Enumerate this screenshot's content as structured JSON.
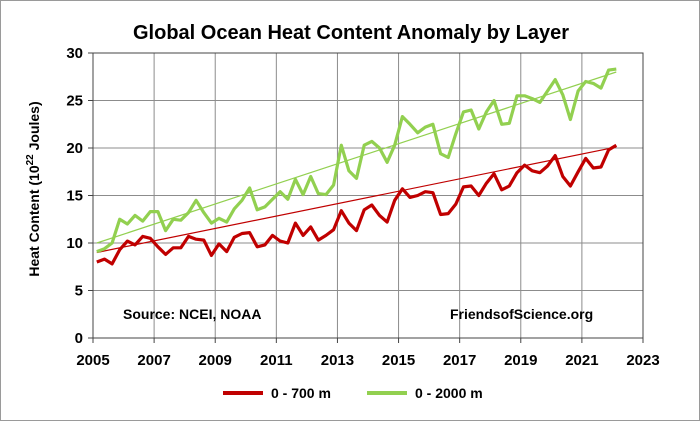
{
  "chart_data": {
    "type": "line",
    "title": "Global Ocean Heat Content Anomaly by Layer",
    "xlabel": "",
    "ylabel": "Heat Content (10",
    "ylabel_sup": "22",
    "ylabel_suffix": " Joules)",
    "xlim": [
      2005,
      2023
    ],
    "ylim": [
      0,
      30
    ],
    "x_ticks": [
      2005,
      2007,
      2009,
      2011,
      2013,
      2015,
      2017,
      2019,
      2021,
      2023
    ],
    "y_ticks": [
      0,
      5,
      10,
      15,
      20,
      25,
      30
    ],
    "grid": true,
    "legend_position": "bottom",
    "annotations": [
      {
        "text": "Source: NCEI, NOAA",
        "position": "lower-left"
      },
      {
        "text": "FriendsofScience.org",
        "position": "lower-right"
      }
    ],
    "series": [
      {
        "name": "0 - 700 m",
        "color": "#c00000",
        "trend_color": "#c00000",
        "trend": [
          [
            2005.125,
            9.0
          ],
          [
            2022.125,
            20.1
          ]
        ],
        "x": [
          2005.125,
          2005.375,
          2005.625,
          2005.875,
          2006.125,
          2006.375,
          2006.625,
          2006.875,
          2007.125,
          2007.375,
          2007.625,
          2007.875,
          2008.125,
          2008.375,
          2008.625,
          2008.875,
          2009.125,
          2009.375,
          2009.625,
          2009.875,
          2010.125,
          2010.375,
          2010.625,
          2010.875,
          2011.125,
          2011.375,
          2011.625,
          2011.875,
          2012.125,
          2012.375,
          2012.625,
          2012.875,
          2013.125,
          2013.375,
          2013.625,
          2013.875,
          2014.125,
          2014.375,
          2014.625,
          2014.875,
          2015.125,
          2015.375,
          2015.625,
          2015.875,
          2016.125,
          2016.375,
          2016.625,
          2016.875,
          2017.125,
          2017.375,
          2017.625,
          2017.875,
          2018.125,
          2018.375,
          2018.625,
          2018.875,
          2019.125,
          2019.375,
          2019.625,
          2019.875,
          2020.125,
          2020.375,
          2020.625,
          2020.875,
          2021.125,
          2021.375,
          2021.625,
          2021.875,
          2022.125
        ],
        "values": [
          8.0,
          8.3,
          7.8,
          9.3,
          10.2,
          9.8,
          10.7,
          10.5,
          9.6,
          8.8,
          9.5,
          9.5,
          10.7,
          10.4,
          10.3,
          8.7,
          9.9,
          9.1,
          10.6,
          11.0,
          11.1,
          9.6,
          9.8,
          10.8,
          10.2,
          10.0,
          12.1,
          10.8,
          11.7,
          10.3,
          10.8,
          11.4,
          13.4,
          12.1,
          11.3,
          13.5,
          14.0,
          12.9,
          12.2,
          14.5,
          15.7,
          14.8,
          15.0,
          15.4,
          15.3,
          13.0,
          13.1,
          14.1,
          15.9,
          16.0,
          15.0,
          16.3,
          17.3,
          15.6,
          16.0,
          17.4,
          18.2,
          17.6,
          17.4,
          18.1,
          19.2,
          17.0,
          16.0,
          17.5,
          18.9,
          17.9,
          18.0,
          19.8,
          20.3
        ]
      },
      {
        "name": "0 - 2000 m",
        "color": "#92d050",
        "trend_color": "#92d050",
        "trend": [
          [
            2005.125,
            10.0
          ],
          [
            2022.125,
            28.0
          ]
        ],
        "x": [
          2005.125,
          2005.375,
          2005.625,
          2005.875,
          2006.125,
          2006.375,
          2006.625,
          2006.875,
          2007.125,
          2007.375,
          2007.625,
          2007.875,
          2008.125,
          2008.375,
          2008.625,
          2008.875,
          2009.125,
          2009.375,
          2009.625,
          2009.875,
          2010.125,
          2010.375,
          2010.625,
          2010.875,
          2011.125,
          2011.375,
          2011.625,
          2011.875,
          2012.125,
          2012.375,
          2012.625,
          2012.875,
          2013.125,
          2013.375,
          2013.625,
          2013.875,
          2014.125,
          2014.375,
          2014.625,
          2014.875,
          2015.125,
          2015.375,
          2015.625,
          2015.875,
          2016.125,
          2016.375,
          2016.625,
          2016.875,
          2017.125,
          2017.375,
          2017.625,
          2017.875,
          2018.125,
          2018.375,
          2018.625,
          2018.875,
          2019.125,
          2019.375,
          2019.625,
          2019.875,
          2020.125,
          2020.375,
          2020.625,
          2020.875,
          2021.125,
          2021.375,
          2021.625,
          2021.875,
          2022.125
        ],
        "values": [
          9.1,
          9.4,
          10.0,
          12.5,
          12.0,
          12.9,
          12.3,
          13.3,
          13.3,
          11.3,
          12.5,
          12.4,
          13.2,
          14.5,
          13.2,
          12.1,
          12.6,
          12.2,
          13.6,
          14.5,
          15.8,
          13.5,
          13.8,
          14.6,
          15.4,
          14.6,
          16.7,
          15.1,
          17.0,
          15.2,
          15.1,
          16.1,
          20.3,
          17.6,
          16.8,
          20.3,
          20.7,
          20.0,
          18.5,
          20.3,
          23.3,
          22.5,
          21.6,
          22.2,
          22.5,
          19.4,
          19.0,
          21.5,
          23.8,
          24.0,
          22.0,
          23.8,
          25.0,
          22.5,
          22.6,
          25.5,
          25.5,
          25.2,
          24.8,
          26.0,
          27.2,
          25.6,
          23.0,
          26.0,
          27.0,
          26.8,
          26.3,
          28.2,
          28.3
        ]
      }
    ]
  }
}
